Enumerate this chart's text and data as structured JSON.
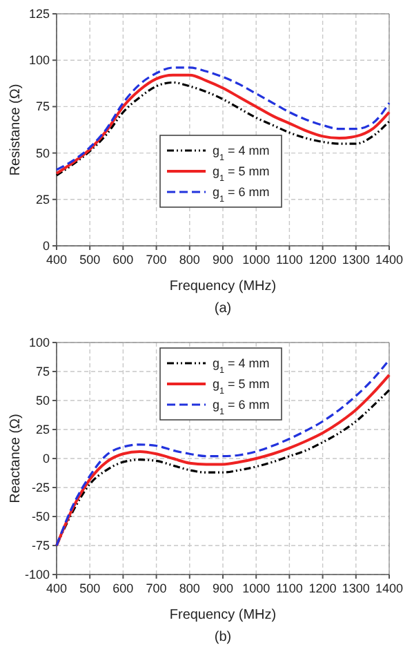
{
  "chart_data": [
    {
      "type": "line",
      "xlabel": "Frequency (MHz)",
      "ylabel": "Resistance (Ω)",
      "annotations": [
        "(a)"
      ],
      "x": [
        400,
        450,
        500,
        550,
        600,
        650,
        700,
        750,
        800,
        850,
        900,
        950,
        1000,
        1050,
        1100,
        1150,
        1200,
        1250,
        1300,
        1350,
        1400
      ],
      "xlim": [
        400,
        1400
      ],
      "xticks": [
        400,
        500,
        600,
        700,
        800,
        900,
        1000,
        1100,
        1200,
        1300,
        1400
      ],
      "ylim": [
        0,
        125
      ],
      "yticks": [
        0,
        25,
        50,
        75,
        100,
        125
      ],
      "grid": true,
      "legend": "right",
      "marker": "none",
      "series": [
        {
          "name": "g$_{1}$ = 4 mm",
          "color": "#000000",
          "line_style": "dotted",
          "values": [
            38,
            44,
            51,
            60,
            72,
            80,
            86,
            88,
            86,
            83,
            79,
            74,
            69,
            65,
            61,
            58,
            56,
            55,
            55,
            59,
            67
          ]
        },
        {
          "name": "g$_{1}$ = 5 mm",
          "color": "#ee2222",
          "line_style": "solid",
          "values": [
            39,
            45,
            52,
            62,
            75,
            84,
            90,
            92,
            92,
            89,
            85,
            80,
            75,
            70,
            66,
            62,
            59,
            58,
            59,
            63,
            72
          ]
        },
        {
          "name": "g$_{1}$ = 6 mm",
          "color": "#2233dd",
          "line_style": "dashed",
          "values": [
            41,
            46,
            53,
            63,
            77,
            87,
            93,
            96,
            96,
            94,
            91,
            87,
            82,
            77,
            72,
            68,
            65,
            63,
            63,
            66,
            77
          ]
        }
      ]
    },
    {
      "type": "line",
      "xlabel": "Frequency (MHz)",
      "ylabel": "Reactance (Ω)",
      "annotations": [
        "(b)"
      ],
      "x": [
        400,
        450,
        500,
        550,
        600,
        650,
        700,
        750,
        800,
        850,
        900,
        950,
        1000,
        1050,
        1100,
        1150,
        1200,
        1250,
        1300,
        1350,
        1400
      ],
      "xlim": [
        400,
        1400
      ],
      "xticks": [
        400,
        500,
        600,
        700,
        800,
        900,
        1000,
        1100,
        1200,
        1300,
        1400
      ],
      "ylim": [
        -100,
        100
      ],
      "yticks": [
        -100,
        -75,
        -50,
        -25,
        0,
        25,
        50,
        75,
        100
      ],
      "grid": true,
      "legend": "top",
      "marker": "none",
      "series": [
        {
          "name": "g$_{1}$ = 4 mm",
          "color": "#000000",
          "line_style": "dotted",
          "values": [
            -75,
            -45,
            -22,
            -10,
            -3,
            -1,
            -2,
            -6,
            -10,
            -12,
            -12,
            -10,
            -7,
            -3,
            2,
            7,
            14,
            22,
            32,
            45,
            59
          ]
        },
        {
          "name": "g$_{1}$ = 5 mm",
          "color": "#ee2222",
          "line_style": "solid",
          "values": [
            -75,
            -42,
            -18,
            -3,
            4,
            6,
            4,
            0,
            -4,
            -5,
            -5,
            -3,
            0,
            4,
            9,
            15,
            22,
            31,
            42,
            56,
            72
          ]
        },
        {
          "name": "g$_{1}$ = 6 mm",
          "color": "#2233dd",
          "line_style": "dashed",
          "values": [
            -75,
            -40,
            -15,
            3,
            10,
            12,
            11,
            7,
            4,
            2,
            2,
            3,
            6,
            11,
            17,
            24,
            32,
            42,
            54,
            68,
            85
          ]
        }
      ]
    }
  ]
}
